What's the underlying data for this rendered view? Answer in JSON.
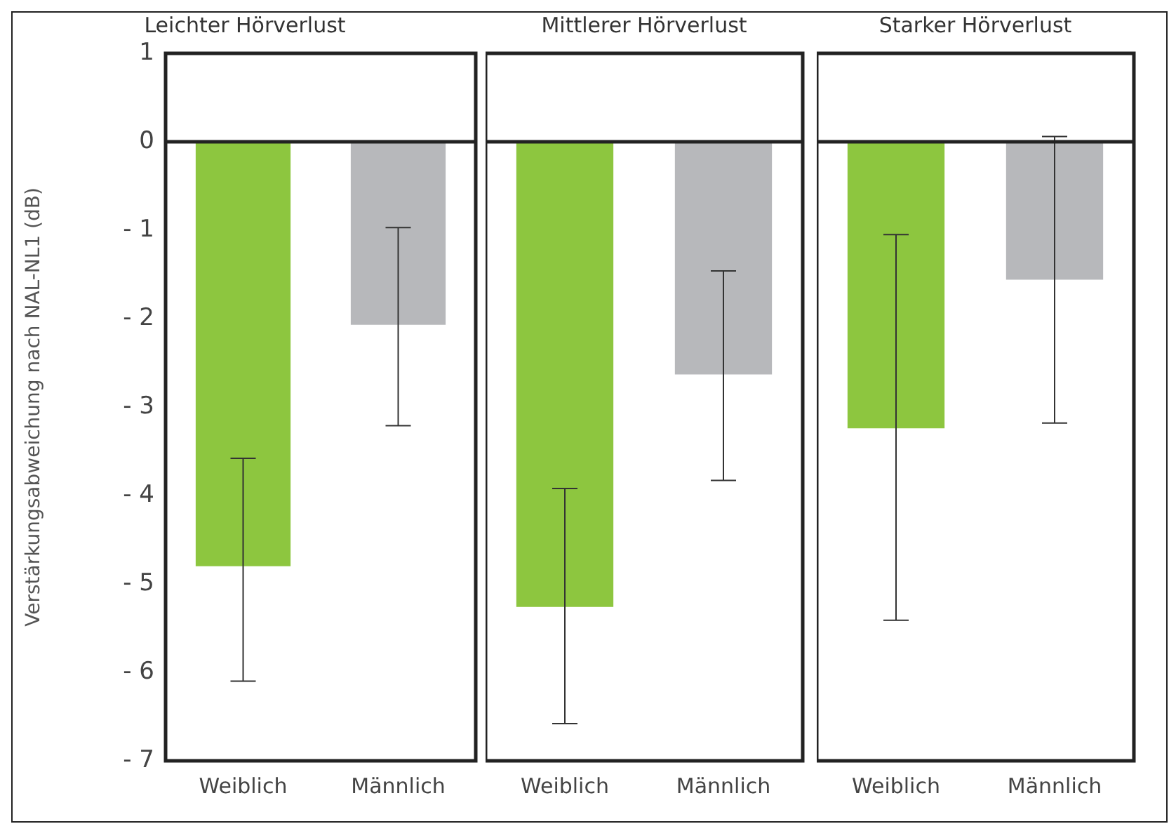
{
  "chart_data": [
    {
      "type": "bar",
      "title": "Leichter Hörverlust",
      "ylabel": "Verstärkungsabweichung nach NAL-NL1 (dB)",
      "categories": [
        "Weiblich",
        "Männlich"
      ],
      "values": [
        -4.8,
        -2.07
      ],
      "colors": [
        "#8dc63f",
        "#b7b8bb"
      ],
      "errors": [
        [
          -6.1,
          -3.58
        ],
        [
          -3.21,
          -0.97
        ]
      ],
      "ylim": [
        -7,
        1
      ],
      "yticks": [
        {
          "value": -7,
          "label": "- 7"
        },
        {
          "value": -6,
          "label": "- 6"
        },
        {
          "value": -5,
          "label": "- 5"
        },
        {
          "value": -4,
          "label": "- 4"
        },
        {
          "value": -3,
          "label": "- 3"
        },
        {
          "value": -2,
          "label": "- 2"
        },
        {
          "value": -1,
          "label": "- 1"
        },
        0,
        1
      ],
      "ref_lines": [
        {
          "axis": "y",
          "value": 0
        }
      ],
      "grid": false,
      "legend": false
    },
    {
      "type": "bar",
      "title": "Mittlerer Hörverlust",
      "categories": [
        "Weiblich",
        "Männlich"
      ],
      "values": [
        -5.26,
        -2.63
      ],
      "colors": [
        "#8dc63f",
        "#b7b8bb"
      ],
      "errors": [
        [
          -6.58,
          -3.92
        ],
        [
          -3.83,
          -1.46
        ]
      ],
      "ylim": [
        -7,
        1
      ],
      "tick_labels": "x",
      "ref_lines": [
        {
          "axis": "y",
          "value": 0
        }
      ],
      "grid": false,
      "legend": false
    },
    {
      "type": "bar",
      "title": "Starker Hörverlust",
      "categories": [
        "Weiblich",
        "Männlich"
      ],
      "values": [
        -3.24,
        -1.56
      ],
      "colors": [
        "#8dc63f",
        "#b7b8bb"
      ],
      "errors": [
        [
          -5.41,
          -1.05
        ],
        [
          -3.18,
          0.06
        ]
      ],
      "ylim": [
        -7,
        1
      ],
      "tick_labels": "x",
      "ref_lines": [
        {
          "axis": "y",
          "value": 0
        }
      ],
      "grid": false,
      "legend": false
    }
  ]
}
